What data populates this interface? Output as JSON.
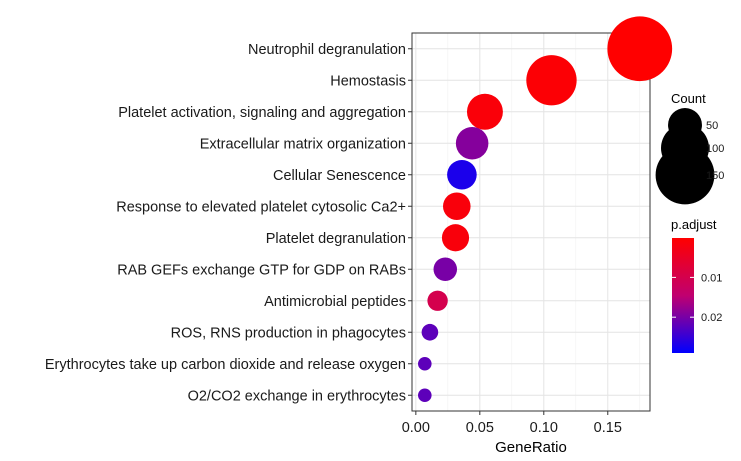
{
  "chart_data": {
    "type": "scatter",
    "xlabel": "GeneRatio",
    "xlim": [
      -0.003,
      0.183
    ],
    "x_ticks": [
      0.0,
      0.05,
      0.1,
      0.15
    ],
    "x_tick_labels": [
      "0.00",
      "0.05",
      "0.10",
      "0.15"
    ],
    "grid": true,
    "categories": [
      "Neutrophil degranulation",
      "Hemostasis",
      "Platelet activation, signaling and aggregation",
      "Extracellular matrix organization",
      "Cellular Senescence",
      "Response to elevated platelet cytosolic Ca2+",
      "Platelet degranulation ",
      "RAB GEFs exchange GTP for GDP on RABs",
      "Antimicrobial peptides",
      "ROS, RNS production in phagocytes",
      "Erythrocytes take up carbon dioxide and release oxygen",
      "O2/CO2 exchange in erythrocytes"
    ],
    "gene_ratio": [
      0.175,
      0.106,
      0.054,
      0.044,
      0.036,
      0.032,
      0.031,
      0.023,
      0.017,
      0.011,
      0.007,
      0.007
    ],
    "count": [
      182,
      110,
      56,
      46,
      38,
      33,
      32,
      24,
      18,
      12,
      8,
      8
    ],
    "p_adjust": [
      0.0001,
      0.0008,
      0.0012,
      0.019,
      0.027,
      0.0015,
      0.0015,
      0.02,
      0.01,
      0.022,
      0.022,
      0.022
    ],
    "size_legend": {
      "title": "Count",
      "values": [
        50,
        100,
        150
      ],
      "labels": [
        "50",
        "100",
        "150"
      ]
    },
    "color_legend": {
      "title": "p.adjust",
      "range": [
        0.0001,
        0.029
      ],
      "ticks": [
        0.01,
        0.02
      ],
      "tick_labels": [
        "0.01",
        "0.02"
      ],
      "low_color": "#ff0000",
      "high_color": "#0000ff"
    }
  }
}
